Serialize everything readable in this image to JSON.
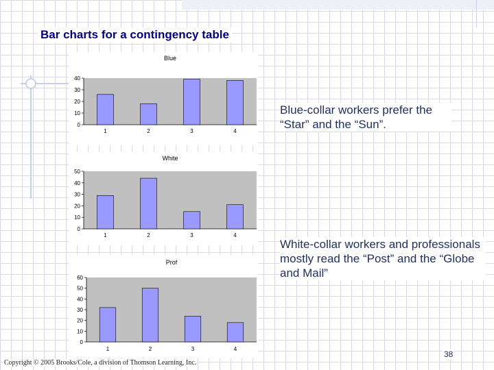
{
  "slide": {
    "title": "Bar charts for a contingency table",
    "note_blue": "Blue-collar workers prefer the “Star” and the “Sun”.",
    "note_white": "White-collar workers and professionals mostly read the “Post” and the “Globe and Mail”",
    "copyright": "Copyright © 2005 Brooks/Cole, a division of Thomson Learning, Inc.",
    "page_number": "38"
  },
  "chart_data": [
    {
      "type": "bar",
      "title": "Blue",
      "categories": [
        "1",
        "2",
        "3",
        "4"
      ],
      "values": [
        26,
        18,
        39,
        38
      ],
      "ylim": [
        0,
        40
      ],
      "yticks": [
        0,
        10,
        20,
        30,
        40
      ],
      "grid": false,
      "bar_color": "#9999ff"
    },
    {
      "type": "bar",
      "title": "White",
      "categories": [
        "1",
        "2",
        "3",
        "4"
      ],
      "values": [
        29,
        44,
        15,
        21
      ],
      "ylim": [
        0,
        50
      ],
      "yticks": [
        0,
        10,
        20,
        30,
        40,
        50
      ],
      "grid": false,
      "bar_color": "#9999ff"
    },
    {
      "type": "bar",
      "title": "Prof",
      "categories": [
        "1",
        "2",
        "3",
        "4"
      ],
      "values": [
        32,
        50,
        24,
        18
      ],
      "ylim": [
        0,
        60
      ],
      "yticks": [
        0,
        10,
        20,
        30,
        40,
        50,
        60
      ],
      "grid": false,
      "bar_color": "#9999ff"
    }
  ]
}
